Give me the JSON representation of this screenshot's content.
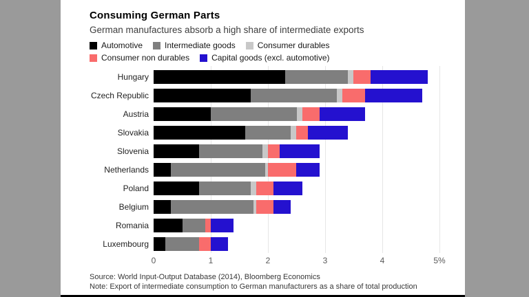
{
  "page": {
    "outer_bg": "#9a9a9a",
    "card_bg": "#ffffff"
  },
  "header": {
    "title": "Consuming German Parts",
    "subtitle": "German manufactures absorb a high share of intermediate exports"
  },
  "legend": {
    "rows": [
      [
        {
          "label": "Automotive",
          "color": "#000000"
        },
        {
          "label": "Intermediate goods",
          "color": "#7f7f7f"
        },
        {
          "label": "Consumer durables",
          "color": "#c8c8c8"
        }
      ],
      [
        {
          "label": "Consumer non durables",
          "color": "#f96c6c"
        },
        {
          "label": "Capital goods (excl. automotive)",
          "color": "#2411cf"
        }
      ]
    ]
  },
  "chart_data": {
    "type": "bar",
    "orientation": "horizontal",
    "stacked": true,
    "title": "Consuming German Parts",
    "subtitle": "German manufactures absorb a high share of intermediate exports",
    "unit": "% of total production",
    "categories": [
      "Hungary",
      "Czech Republic",
      "Austria",
      "Slovakia",
      "Slovenia",
      "Netherlands",
      "Poland",
      "Belgium",
      "Romania",
      "Luxembourg"
    ],
    "series": [
      {
        "name": "Automotive",
        "color": "#000000",
        "values": [
          2.3,
          1.7,
          1.0,
          1.6,
          0.8,
          0.3,
          0.8,
          0.3,
          0.5,
          0.2
        ]
      },
      {
        "name": "Intermediate goods",
        "color": "#7f7f7f",
        "values": [
          1.1,
          1.5,
          1.5,
          0.8,
          1.1,
          1.65,
          0.9,
          1.45,
          0.4,
          0.6
        ]
      },
      {
        "name": "Consumer durables",
        "color": "#c8c8c8",
        "values": [
          0.1,
          0.1,
          0.1,
          0.1,
          0.1,
          0.05,
          0.1,
          0.05,
          0.0,
          0.0
        ]
      },
      {
        "name": "Consumer non durables",
        "color": "#f96c6c",
        "values": [
          0.3,
          0.4,
          0.3,
          0.2,
          0.2,
          0.5,
          0.3,
          0.3,
          0.1,
          0.2
        ]
      },
      {
        "name": "Capital goods (excl. automotive)",
        "color": "#2411cf",
        "values": [
          1.0,
          1.0,
          0.8,
          0.7,
          0.7,
          0.4,
          0.5,
          0.3,
          0.4,
          0.3
        ]
      }
    ],
    "totals": [
      4.8,
      4.7,
      3.7,
      3.4,
      2.9,
      2.9,
      2.6,
      2.4,
      1.4,
      1.3
    ],
    "xlim": [
      0,
      5
    ],
    "xticks": [
      "0",
      "1",
      "2",
      "3",
      "4",
      "5%"
    ],
    "grid": true,
    "gridline_color": "#e6e6e6",
    "legend_position": "top"
  },
  "footer": {
    "source": "Source: World Input-Output Database (2014), Bloomberg Economics",
    "note": "Note: Export of intermediate consumption to German manufacturers as a share of total production"
  }
}
